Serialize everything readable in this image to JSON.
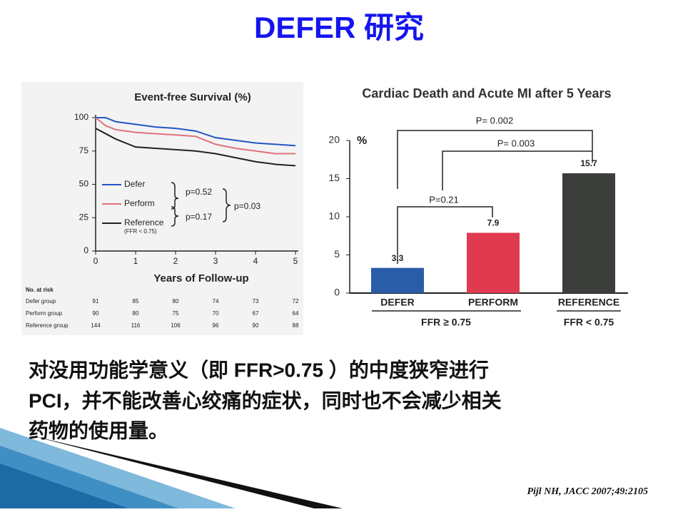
{
  "title": "DEFER 研究",
  "body": [
    "对没用功能学意义（即 FFR>0.75 ）的中度狭窄进行",
    "PCI，并不能改善心绞痛的症状，同时也不会减少相关",
    "药物的使用量。"
  ],
  "citation": "Pijl NH, JACC 2007;49:2105",
  "chart_data": [
    {
      "type": "line",
      "title": "Event-free Survival (%)",
      "x_label": "Years of Follow-up",
      "x": [
        0,
        0.25,
        0.5,
        1,
        1.5,
        2,
        2.5,
        3,
        3.5,
        4,
        4.5,
        5
      ],
      "series": [
        {
          "name": "Defer",
          "color": "#2255c4",
          "values": [
            100,
            100,
            97,
            95,
            93,
            92,
            90,
            85,
            83,
            81,
            80,
            79
          ]
        },
        {
          "name": "Perform",
          "color": "#e0707a",
          "values": [
            100,
            94,
            91,
            89,
            88,
            87,
            86,
            80,
            77,
            75,
            73,
            73
          ]
        },
        {
          "name": "Reference",
          "color": "#222222",
          "values": [
            92,
            88,
            84,
            78,
            77,
            76,
            75,
            73,
            70,
            67,
            65,
            64
          ]
        }
      ],
      "legend_note": "(FFR < 0.75)",
      "p_values": [
        "p=0.52",
        "p=0.17",
        "p=0.03"
      ],
      "xlim": [
        0,
        5
      ],
      "xticks": [
        0,
        1,
        2,
        3,
        4,
        5
      ],
      "ylim": [
        0,
        100
      ],
      "yticks": [
        0,
        25,
        50,
        75,
        100
      ],
      "risk_table": {
        "title": "No. at risk",
        "rows": [
          {
            "name": "Defer group",
            "values": [
              91,
              85,
              80,
              74,
              73,
              72
            ]
          },
          {
            "name": "Perform group",
            "values": [
              90,
              80,
              75,
              70,
              67,
              64
            ]
          },
          {
            "name": "Reference group",
            "values": [
              144,
              116,
              106,
              96,
              90,
              88
            ]
          }
        ]
      }
    },
    {
      "type": "bar",
      "title": "Cardiac Death and Acute MI after 5 Years",
      "y_label": "%",
      "categories": [
        "DEFER",
        "PERFORM",
        "REFERENCE"
      ],
      "values": [
        3.3,
        7.9,
        15.7
      ],
      "colors": [
        "#2a5ca8",
        "#e03a50",
        "#3b3e3b"
      ],
      "ylim": [
        0,
        20
      ],
      "yticks": [
        0,
        5,
        10,
        15,
        20
      ],
      "group_labels": [
        "FFR ≥ 0.75",
        "FFR < 0.75"
      ],
      "annotations": [
        "P= 0.002",
        "P= 0.003",
        "P=0.21"
      ]
    }
  ]
}
